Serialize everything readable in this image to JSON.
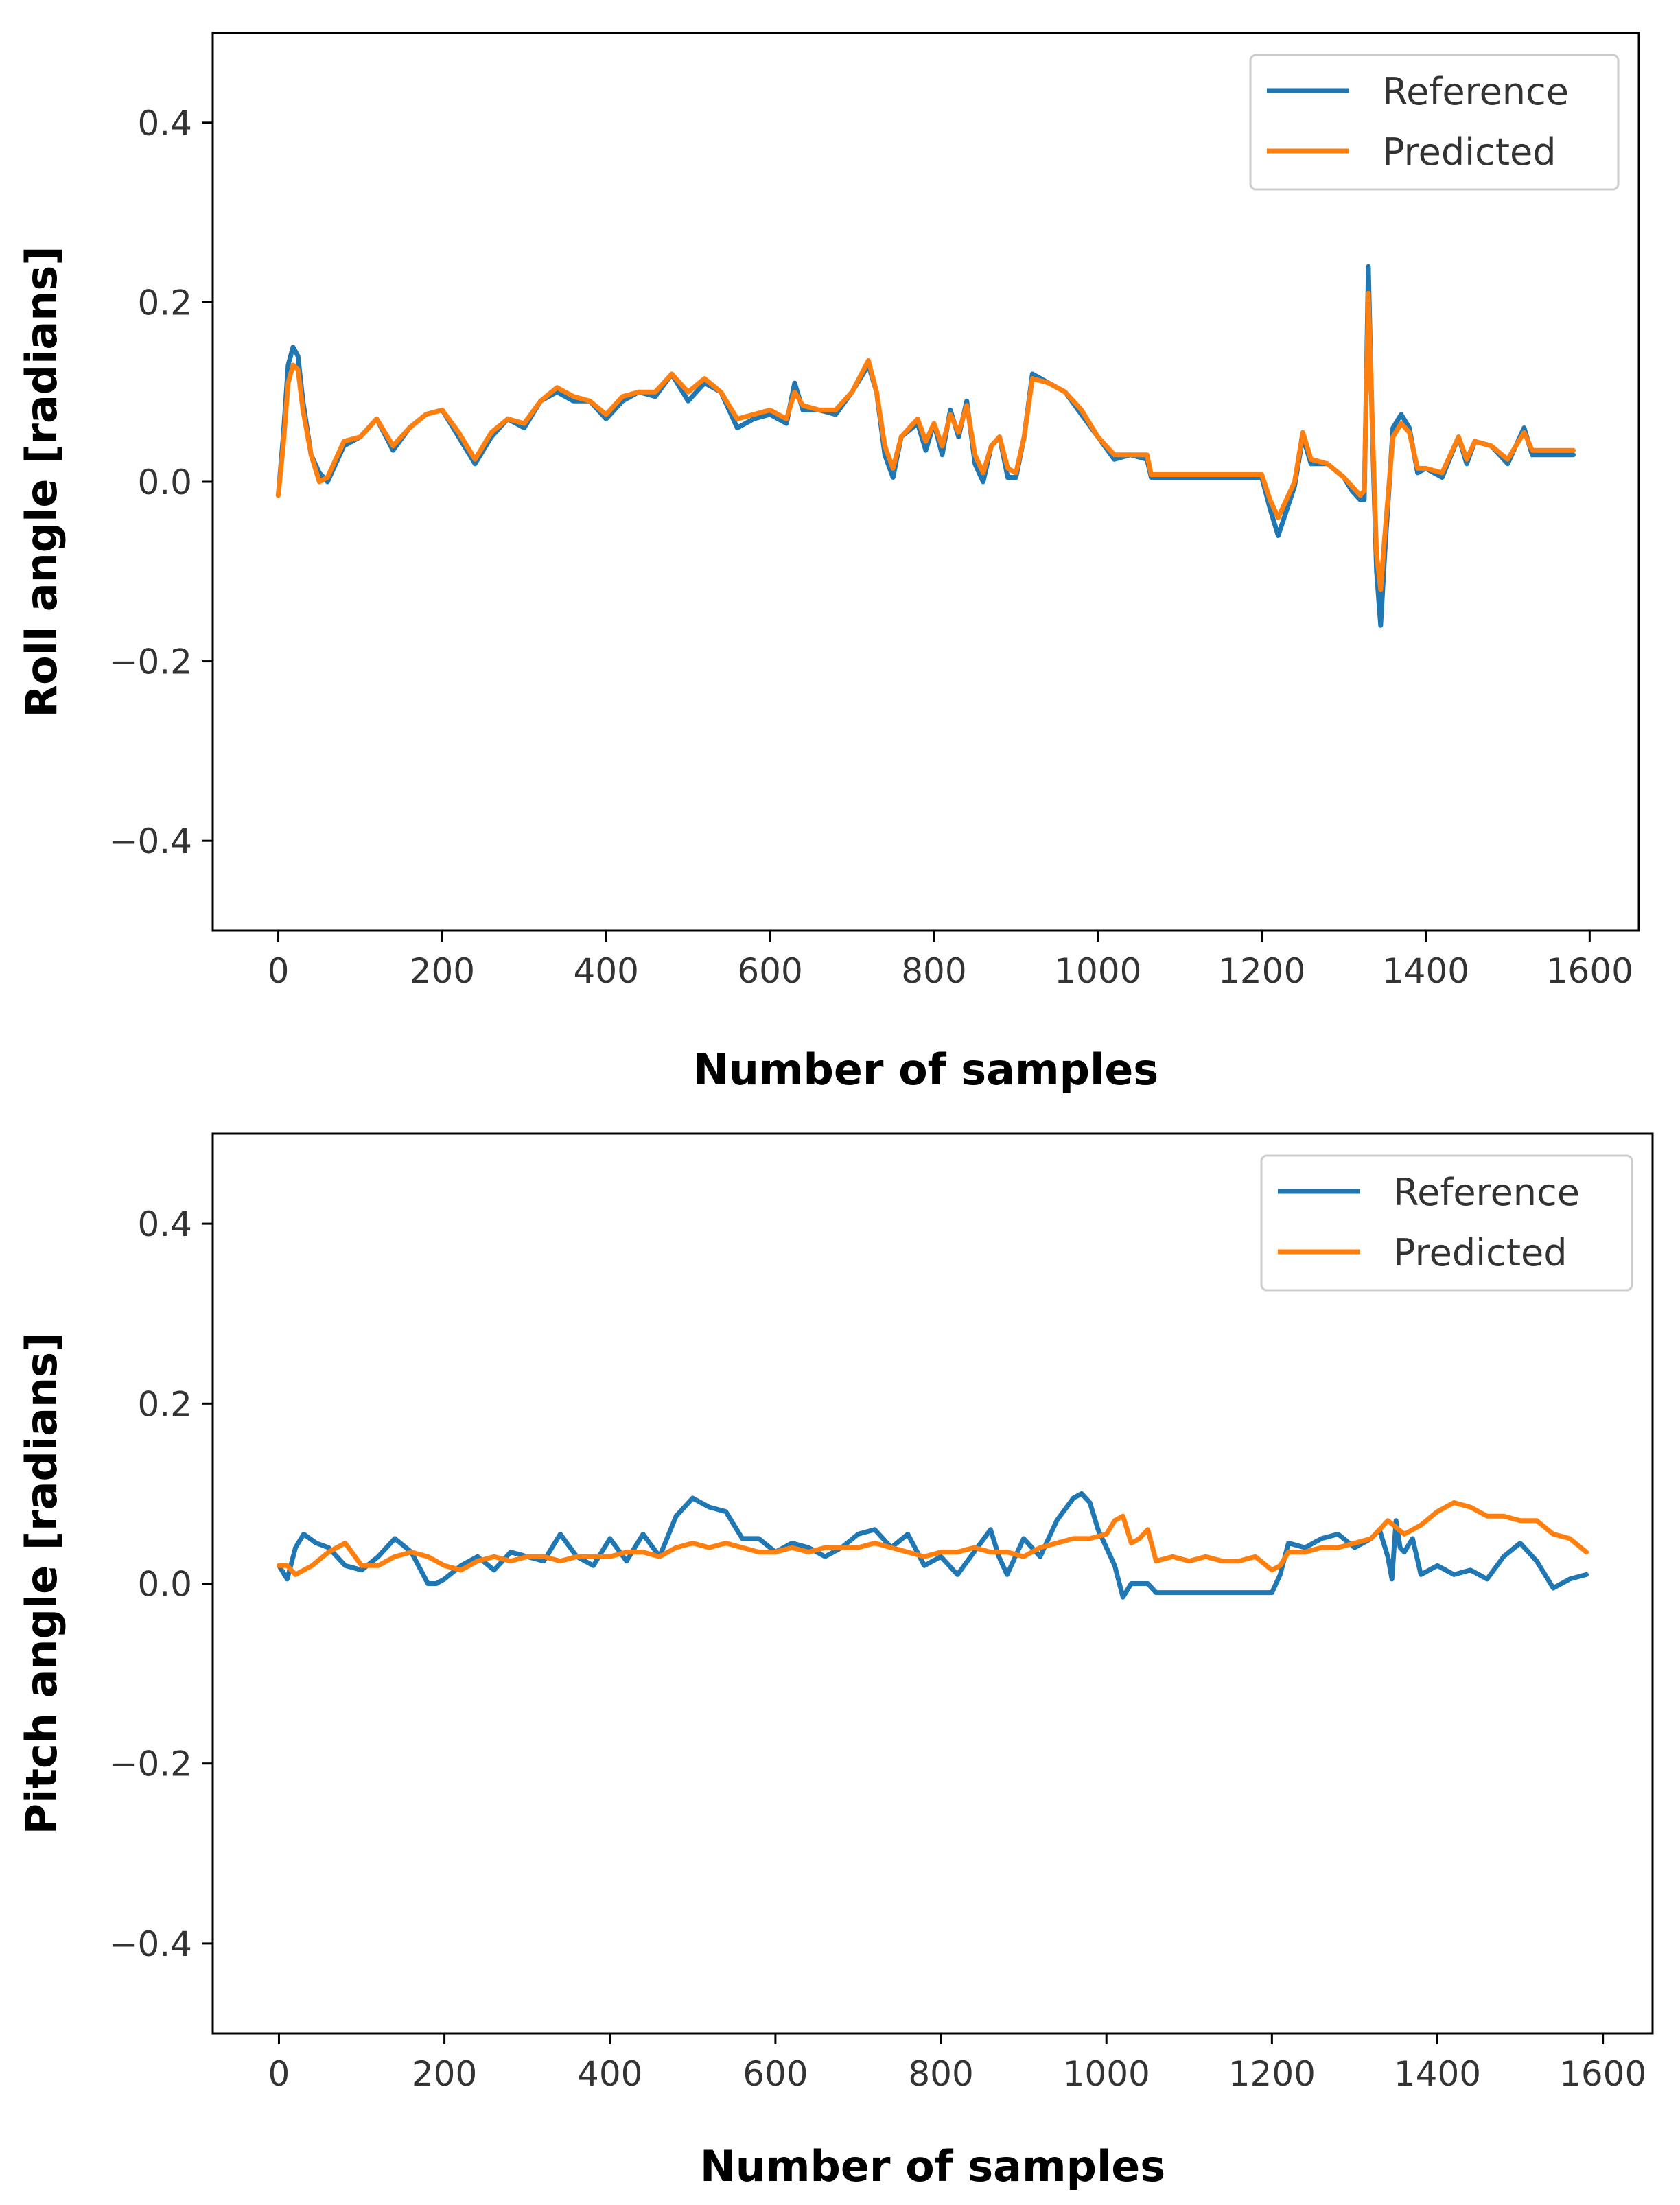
{
  "chart_data": [
    {
      "type": "line",
      "title": "",
      "xlabel": "Number of samples",
      "ylabel": "Roll angle [radians]",
      "xlim": [
        -80,
        1660
      ],
      "ylim": [
        -0.5,
        0.5
      ],
      "xticks": [
        0,
        200,
        400,
        600,
        800,
        1000,
        1200,
        1400,
        1600
      ],
      "yticks": [
        -0.4,
        -0.2,
        0.0,
        0.2,
        0.4
      ],
      "ytick_labels": [
        "−0.4",
        "−0.2",
        "0.0",
        "0.2",
        "0.4"
      ],
      "legend_position": "top-right",
      "series": [
        {
          "name": "Reference",
          "color": "#1f77b4",
          "x": [
            0,
            6,
            12,
            18,
            24,
            30,
            40,
            50,
            60,
            80,
            100,
            120,
            140,
            160,
            180,
            200,
            220,
            240,
            260,
            280,
            300,
            320,
            340,
            360,
            380,
            400,
            420,
            440,
            460,
            480,
            500,
            520,
            540,
            560,
            580,
            600,
            620,
            630,
            640,
            660,
            680,
            700,
            720,
            730,
            740,
            750,
            760,
            780,
            790,
            800,
            810,
            820,
            830,
            840,
            850,
            860,
            870,
            880,
            890,
            900,
            910,
            920,
            940,
            960,
            980,
            1000,
            1020,
            1040,
            1060,
            1065,
            1100,
            1200,
            1210,
            1220,
            1240,
            1250,
            1260,
            1280,
            1300,
            1310,
            1320,
            1325,
            1330,
            1335,
            1340,
            1345,
            1350,
            1360,
            1370,
            1380,
            1390,
            1400,
            1420,
            1440,
            1450,
            1460,
            1480,
            1500,
            1520,
            1530,
            1540,
            1560,
            1580
          ],
          "y": [
            -0.015,
            0.05,
            0.13,
            0.15,
            0.14,
            0.09,
            0.03,
            0.01,
            0.0,
            0.04,
            0.05,
            0.07,
            0.035,
            0.06,
            0.075,
            0.08,
            0.05,
            0.02,
            0.05,
            0.07,
            0.06,
            0.09,
            0.1,
            0.09,
            0.09,
            0.07,
            0.09,
            0.1,
            0.095,
            0.12,
            0.09,
            0.11,
            0.1,
            0.06,
            0.07,
            0.075,
            0.065,
            0.11,
            0.08,
            0.08,
            0.075,
            0.1,
            0.13,
            0.1,
            0.03,
            0.005,
            0.05,
            0.065,
            0.035,
            0.065,
            0.03,
            0.08,
            0.05,
            0.09,
            0.02,
            0.0,
            0.04,
            0.05,
            0.005,
            0.005,
            0.05,
            0.12,
            0.11,
            0.1,
            0.075,
            0.05,
            0.025,
            0.03,
            0.025,
            0.005,
            0.005,
            0.005,
            -0.03,
            -0.06,
            -0.005,
            0.05,
            0.02,
            0.02,
            0.005,
            -0.01,
            -0.02,
            -0.02,
            0.24,
            0.05,
            -0.1,
            -0.16,
            -0.08,
            0.06,
            0.075,
            0.06,
            0.01,
            0.015,
            0.005,
            0.05,
            0.02,
            0.045,
            0.04,
            0.02,
            0.06,
            0.03,
            0.03,
            0.03,
            0.03
          ]
        },
        {
          "name": "Predicted",
          "color": "#ff7f0e",
          "x": [
            0,
            6,
            12,
            18,
            24,
            30,
            40,
            50,
            60,
            80,
            100,
            120,
            140,
            160,
            180,
            200,
            220,
            240,
            260,
            280,
            300,
            320,
            340,
            360,
            380,
            400,
            420,
            440,
            460,
            480,
            500,
            520,
            540,
            560,
            580,
            600,
            620,
            630,
            640,
            660,
            680,
            700,
            720,
            730,
            740,
            750,
            760,
            780,
            790,
            800,
            810,
            820,
            830,
            840,
            850,
            860,
            870,
            880,
            890,
            900,
            910,
            920,
            940,
            960,
            980,
            1000,
            1020,
            1040,
            1060,
            1065,
            1100,
            1200,
            1210,
            1220,
            1240,
            1250,
            1260,
            1280,
            1300,
            1310,
            1320,
            1325,
            1330,
            1335,
            1340,
            1345,
            1350,
            1360,
            1370,
            1380,
            1390,
            1400,
            1420,
            1440,
            1450,
            1460,
            1480,
            1500,
            1520,
            1530,
            1540,
            1560,
            1580
          ],
          "y": [
            -0.015,
            0.04,
            0.11,
            0.13,
            0.125,
            0.08,
            0.03,
            0.0,
            0.005,
            0.045,
            0.05,
            0.07,
            0.04,
            0.06,
            0.075,
            0.08,
            0.055,
            0.025,
            0.055,
            0.07,
            0.065,
            0.09,
            0.105,
            0.095,
            0.09,
            0.075,
            0.095,
            0.1,
            0.1,
            0.12,
            0.1,
            0.115,
            0.1,
            0.07,
            0.075,
            0.08,
            0.07,
            0.1,
            0.085,
            0.08,
            0.08,
            0.1,
            0.135,
            0.1,
            0.04,
            0.015,
            0.05,
            0.07,
            0.045,
            0.065,
            0.04,
            0.075,
            0.055,
            0.085,
            0.03,
            0.01,
            0.04,
            0.05,
            0.015,
            0.01,
            0.05,
            0.115,
            0.11,
            0.1,
            0.08,
            0.05,
            0.03,
            0.03,
            0.03,
            0.008,
            0.008,
            0.008,
            -0.02,
            -0.04,
            0.0,
            0.055,
            0.025,
            0.02,
            0.005,
            -0.005,
            -0.015,
            -0.01,
            0.21,
            0.06,
            -0.08,
            -0.12,
            -0.06,
            0.05,
            0.065,
            0.055,
            0.015,
            0.015,
            0.01,
            0.05,
            0.025,
            0.045,
            0.04,
            0.025,
            0.055,
            0.035,
            0.035,
            0.035,
            0.035
          ]
        }
      ]
    },
    {
      "type": "line",
      "title": "",
      "xlabel": "Number of samples",
      "ylabel": "Pitch angle [radians]",
      "xlim": [
        -80,
        1660
      ],
      "ylim": [
        -0.5,
        0.5
      ],
      "xticks": [
        0,
        200,
        400,
        600,
        800,
        1000,
        1200,
        1400,
        1600
      ],
      "yticks": [
        -0.4,
        -0.2,
        0.0,
        0.2,
        0.4
      ],
      "ytick_labels": [
        "−0.4",
        "−0.2",
        "0.0",
        "0.2",
        "0.4"
      ],
      "legend_position": "top-right",
      "series": [
        {
          "name": "Reference",
          "color": "#1f77b4",
          "x": [
            0,
            10,
            20,
            30,
            45,
            60,
            80,
            100,
            120,
            140,
            160,
            180,
            190,
            200,
            220,
            240,
            260,
            280,
            300,
            320,
            340,
            360,
            380,
            400,
            420,
            440,
            460,
            480,
            500,
            520,
            540,
            560,
            580,
            600,
            620,
            640,
            660,
            680,
            700,
            720,
            740,
            760,
            780,
            800,
            820,
            840,
            860,
            870,
            880,
            900,
            920,
            940,
            960,
            970,
            980,
            990,
            1000,
            1010,
            1020,
            1030,
            1040,
            1050,
            1060,
            1100,
            1200,
            1210,
            1220,
            1240,
            1260,
            1280,
            1300,
            1320,
            1330,
            1340,
            1345,
            1350,
            1355,
            1360,
            1370,
            1380,
            1400,
            1420,
            1440,
            1460,
            1480,
            1500,
            1520,
            1540,
            1560,
            1580
          ],
          "y": [
            0.02,
            0.005,
            0.04,
            0.055,
            0.045,
            0.04,
            0.02,
            0.015,
            0.03,
            0.05,
            0.035,
            0.0,
            0.0,
            0.005,
            0.02,
            0.03,
            0.015,
            0.035,
            0.03,
            0.025,
            0.055,
            0.03,
            0.02,
            0.05,
            0.025,
            0.055,
            0.03,
            0.075,
            0.095,
            0.085,
            0.08,
            0.05,
            0.05,
            0.035,
            0.045,
            0.04,
            0.03,
            0.04,
            0.055,
            0.06,
            0.04,
            0.055,
            0.02,
            0.03,
            0.01,
            0.035,
            0.06,
            0.03,
            0.01,
            0.05,
            0.03,
            0.07,
            0.095,
            0.1,
            0.09,
            0.06,
            0.04,
            0.02,
            -0.015,
            0.0,
            0.0,
            0.0,
            -0.01,
            -0.01,
            -0.01,
            0.01,
            0.045,
            0.04,
            0.05,
            0.055,
            0.04,
            0.05,
            0.06,
            0.03,
            0.005,
            0.07,
            0.04,
            0.035,
            0.05,
            0.01,
            0.02,
            0.01,
            0.015,
            0.005,
            0.03,
            0.045,
            0.025,
            -0.005,
            0.005,
            0.01
          ]
        },
        {
          "name": "Predicted",
          "color": "#ff7f0e",
          "x": [
            0,
            10,
            20,
            40,
            60,
            80,
            100,
            120,
            140,
            160,
            180,
            200,
            220,
            240,
            260,
            280,
            300,
            320,
            340,
            360,
            380,
            400,
            420,
            440,
            460,
            480,
            500,
            520,
            540,
            560,
            580,
            600,
            620,
            640,
            660,
            680,
            700,
            720,
            740,
            760,
            780,
            800,
            820,
            840,
            860,
            880,
            900,
            920,
            940,
            960,
            980,
            1000,
            1010,
            1020,
            1030,
            1040,
            1050,
            1060,
            1080,
            1100,
            1120,
            1140,
            1160,
            1180,
            1200,
            1210,
            1220,
            1240,
            1260,
            1280,
            1300,
            1320,
            1340,
            1360,
            1380,
            1400,
            1420,
            1440,
            1460,
            1480,
            1500,
            1520,
            1540,
            1560,
            1580
          ],
          "y": [
            0.02,
            0.02,
            0.01,
            0.02,
            0.035,
            0.045,
            0.02,
            0.02,
            0.03,
            0.035,
            0.03,
            0.02,
            0.015,
            0.025,
            0.03,
            0.025,
            0.03,
            0.03,
            0.025,
            0.03,
            0.03,
            0.03,
            0.035,
            0.035,
            0.03,
            0.04,
            0.045,
            0.04,
            0.045,
            0.04,
            0.035,
            0.035,
            0.04,
            0.035,
            0.04,
            0.04,
            0.04,
            0.045,
            0.04,
            0.035,
            0.03,
            0.035,
            0.035,
            0.04,
            0.035,
            0.035,
            0.03,
            0.04,
            0.045,
            0.05,
            0.05,
            0.055,
            0.07,
            0.075,
            0.045,
            0.05,
            0.06,
            0.025,
            0.03,
            0.025,
            0.03,
            0.025,
            0.025,
            0.03,
            0.015,
            0.02,
            0.035,
            0.035,
            0.04,
            0.04,
            0.045,
            0.05,
            0.07,
            0.055,
            0.065,
            0.08,
            0.09,
            0.085,
            0.075,
            0.075,
            0.07,
            0.07,
            0.055,
            0.05,
            0.035
          ]
        }
      ]
    }
  ]
}
